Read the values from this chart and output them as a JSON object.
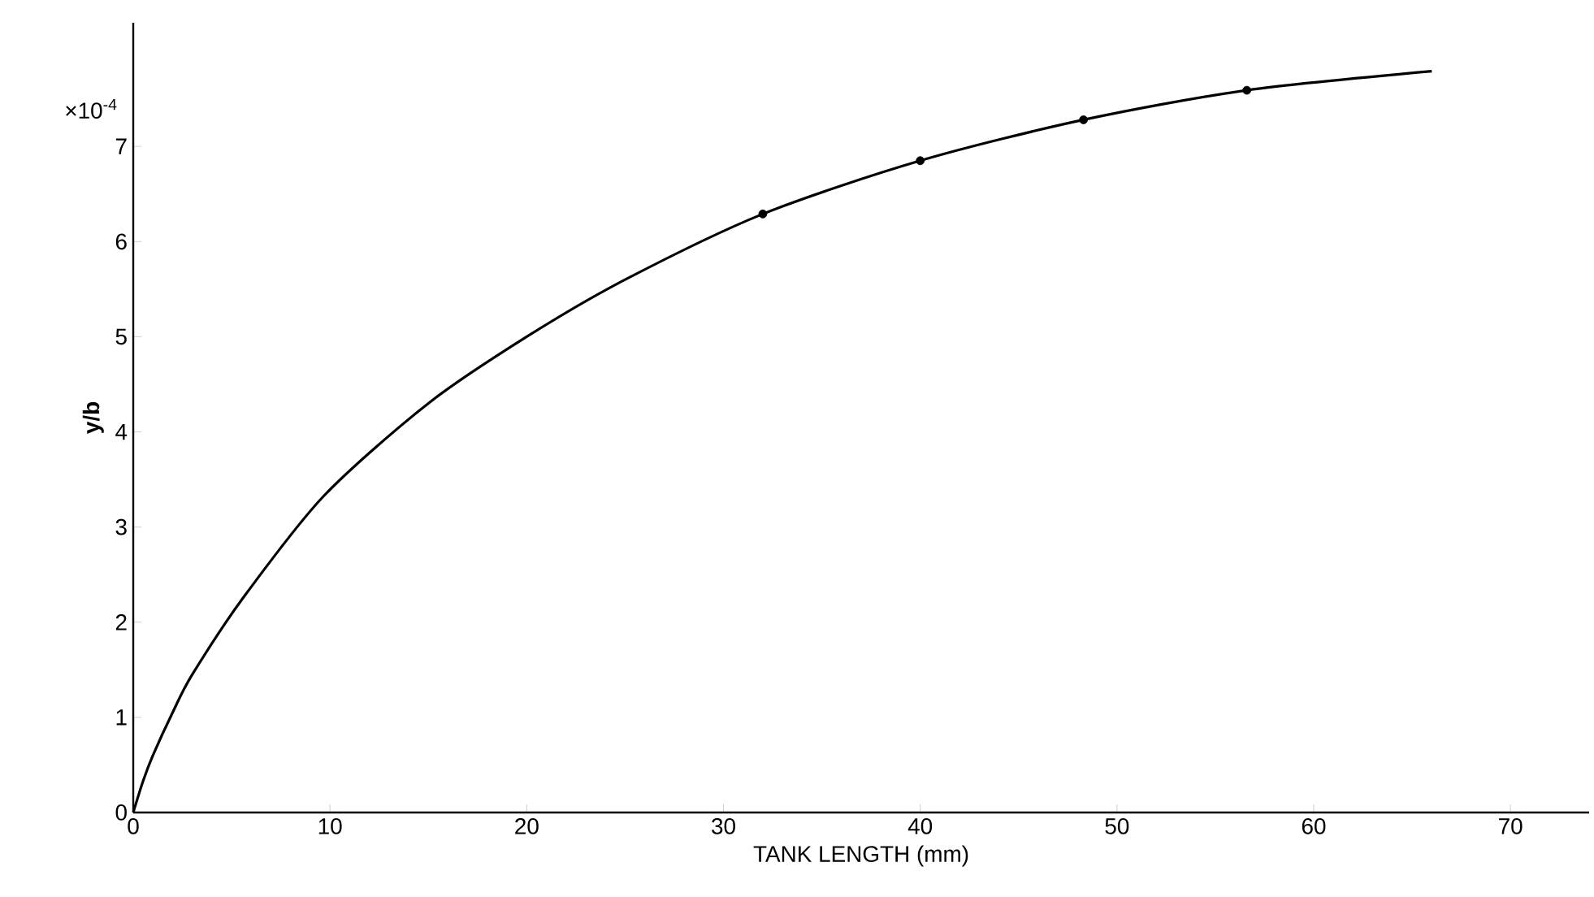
{
  "chart_data": {
    "type": "line",
    "xlabel": "TANK LENGTH (mm)",
    "ylabel": "y/b",
    "annotations": [
      "×10$^{-4}$"
    ],
    "xlim": [
      0,
      74
    ],
    "ylim": [
      0,
      8.3
    ],
    "xticks": [
      0,
      10,
      20,
      30,
      40,
      50,
      60,
      70
    ],
    "yticks": [
      0,
      1,
      2,
      3,
      4,
      5,
      6,
      7
    ],
    "grid": false,
    "series": [
      {
        "color": "#000000",
        "marker": "none",
        "x": [
          0,
          0.5,
          1,
          2,
          3,
          5.6,
          9.7,
          15,
          20,
          25,
          32,
          40,
          48.3,
          56.6,
          66
        ],
        "values": [
          0,
          0.33,
          0.6,
          1.05,
          1.45,
          2.26,
          3.33,
          4.3,
          5.0,
          5.6,
          6.29,
          6.85,
          7.28,
          7.59,
          7.79
        ]
      },
      {
        "type": "scatter",
        "color": "#000000",
        "marker": "circle",
        "x": [
          32,
          40,
          48.3,
          56.6
        ],
        "values": [
          6.29,
          6.85,
          7.28,
          7.59
        ]
      }
    ]
  }
}
